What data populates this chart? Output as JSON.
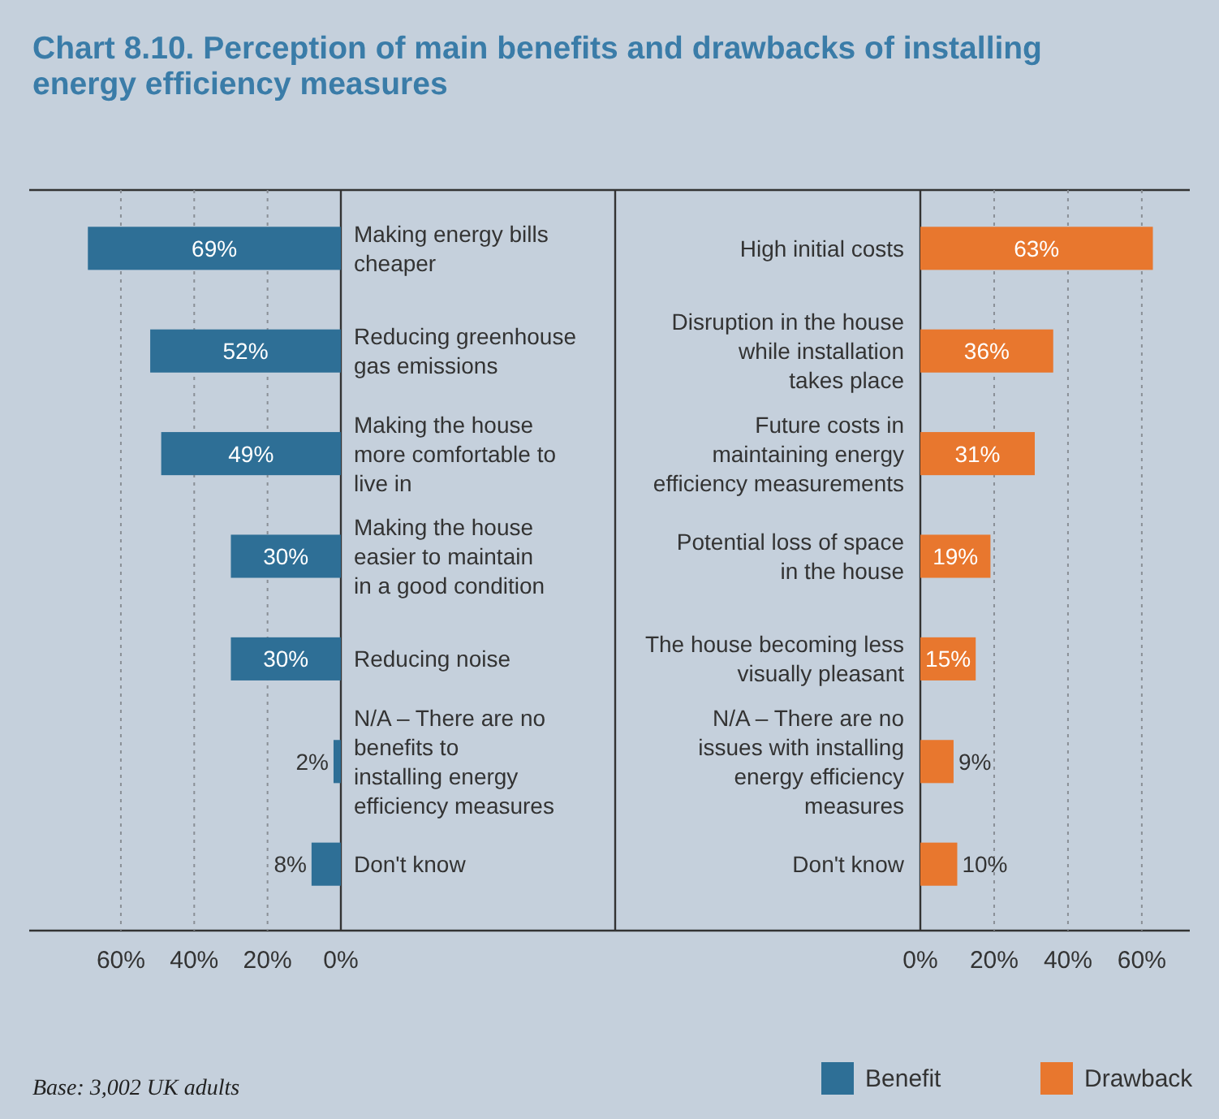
{
  "chart_data": [
    {
      "type": "bar",
      "orientation": "horizontal",
      "title": "Chart 8.10. Perception of main benefits and drawbacks of installing energy efficiency measures",
      "annotations": [
        "Base: 3,002 UK adults"
      ],
      "categories": [
        "Making energy bills cheaper",
        "Reducing greenhouse gas emissions",
        "Making the house more comfortable to live in",
        "Making the house easier to maintain in a good condition",
        "Reducing noise",
        "N/A – There are no benefits to installing energy efficiency measures",
        "Don't know"
      ],
      "series": [
        {
          "name": "Benefit",
          "color": "#2e6f96",
          "values": [
            69,
            52,
            49,
            30,
            30,
            2,
            8
          ],
          "value_labels": [
            "69%",
            "52%",
            "49%",
            "30%",
            "30%",
            "2%",
            "8%"
          ]
        }
      ],
      "xlim": [
        85,
        0
      ],
      "xticks": [
        {
          "value": 60,
          "label": "60%"
        },
        {
          "value": 40,
          "label": "40%"
        },
        {
          "value": 20,
          "label": "20%"
        },
        {
          "value": 0,
          "label": "0%"
        }
      ],
      "grid": "x",
      "legend": "bottom right"
    },
    {
      "type": "bar",
      "orientation": "horizontal",
      "categories": [
        "High initial costs",
        "Disruption in the house while installation takes place",
        "Future costs in maintaining energy efficiency measurements",
        "Potential loss of space in the house",
        "The house becoming less visually pleasant",
        "N/A – There are no issues with installing energy efficiency measures",
        "Don't know"
      ],
      "series": [
        {
          "name": "Drawback",
          "color": "#e8772e",
          "values": [
            63,
            36,
            31,
            19,
            15,
            9,
            10
          ],
          "value_labels": [
            "63%",
            "36%",
            "31%",
            "19%",
            "15%",
            "9%",
            "10%"
          ]
        }
      ],
      "xlim": [
        0,
        73
      ],
      "xticks": [
        {
          "value": 0,
          "label": "0%"
        },
        {
          "value": 20,
          "label": "20%"
        },
        {
          "value": 40,
          "label": "40%"
        },
        {
          "value": 60,
          "label": "60%"
        }
      ],
      "grid": "x",
      "legend": "bottom right"
    }
  ]
}
